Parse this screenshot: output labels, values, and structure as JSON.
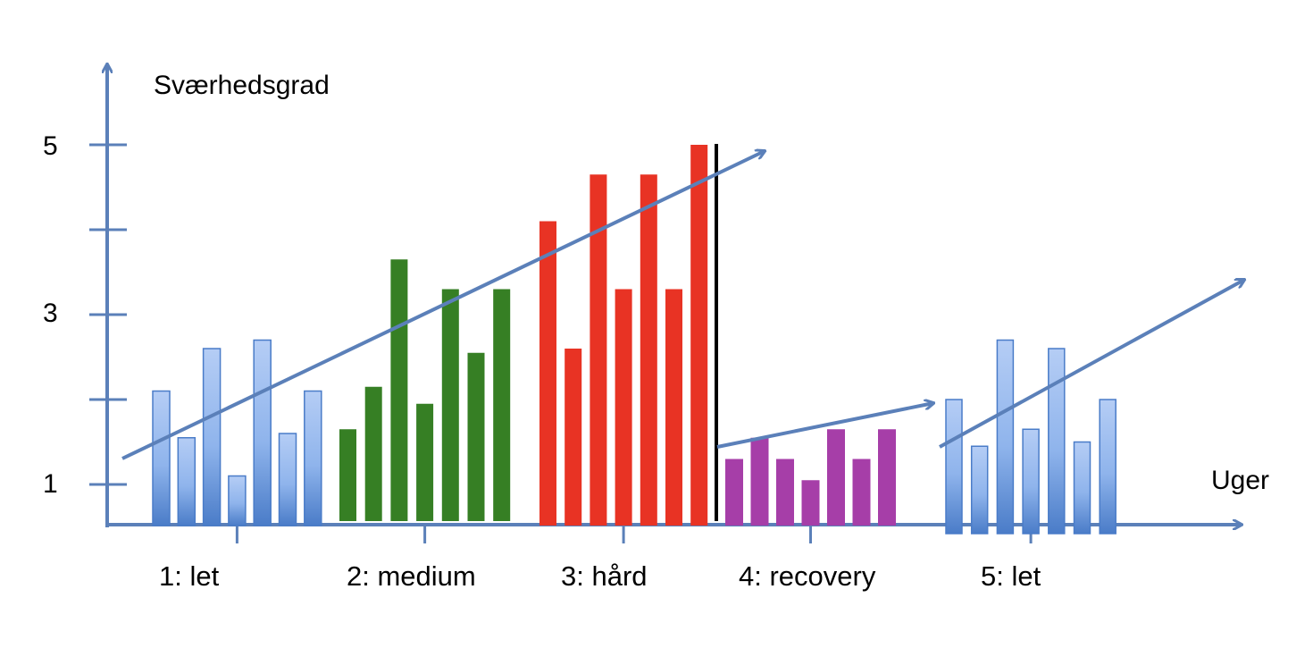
{
  "chart_data": {
    "type": "bar",
    "ylabel": "Sværhedsgrad",
    "xlabel": "Uger",
    "y_tick_labels": [
      "5",
      "3",
      "1"
    ],
    "y_tick_values": [
      5,
      4,
      3,
      2,
      1
    ],
    "weeks": [
      {
        "label": "1: let",
        "color": "#8fb4ec",
        "values": [
          2.1,
          1.55,
          2.6,
          1.1,
          2.7,
          1.6,
          2.1
        ]
      },
      {
        "label": "2: medium",
        "color": "#367f24",
        "values": [
          1.65,
          2.15,
          3.65,
          1.95,
          3.3,
          2.55,
          3.3
        ]
      },
      {
        "label": "3: hård",
        "color": "#e83324",
        "values": [
          4.1,
          2.6,
          4.65,
          3.3,
          4.65,
          3.3,
          5.0
        ]
      },
      {
        "label": "4: recovery",
        "color": "#a63ea8",
        "values": [
          1.3,
          1.55,
          1.3,
          1.05,
          1.65,
          1.3,
          1.65
        ]
      },
      {
        "label": "5: let",
        "color": "#8fb4ec",
        "values": [
          2.0,
          1.45,
          2.7,
          1.65,
          2.6,
          1.5,
          2.0
        ]
      }
    ],
    "colors": {
      "axis": "#5b80b9",
      "trend": "#5b80b9",
      "divider": "#000000"
    }
  }
}
